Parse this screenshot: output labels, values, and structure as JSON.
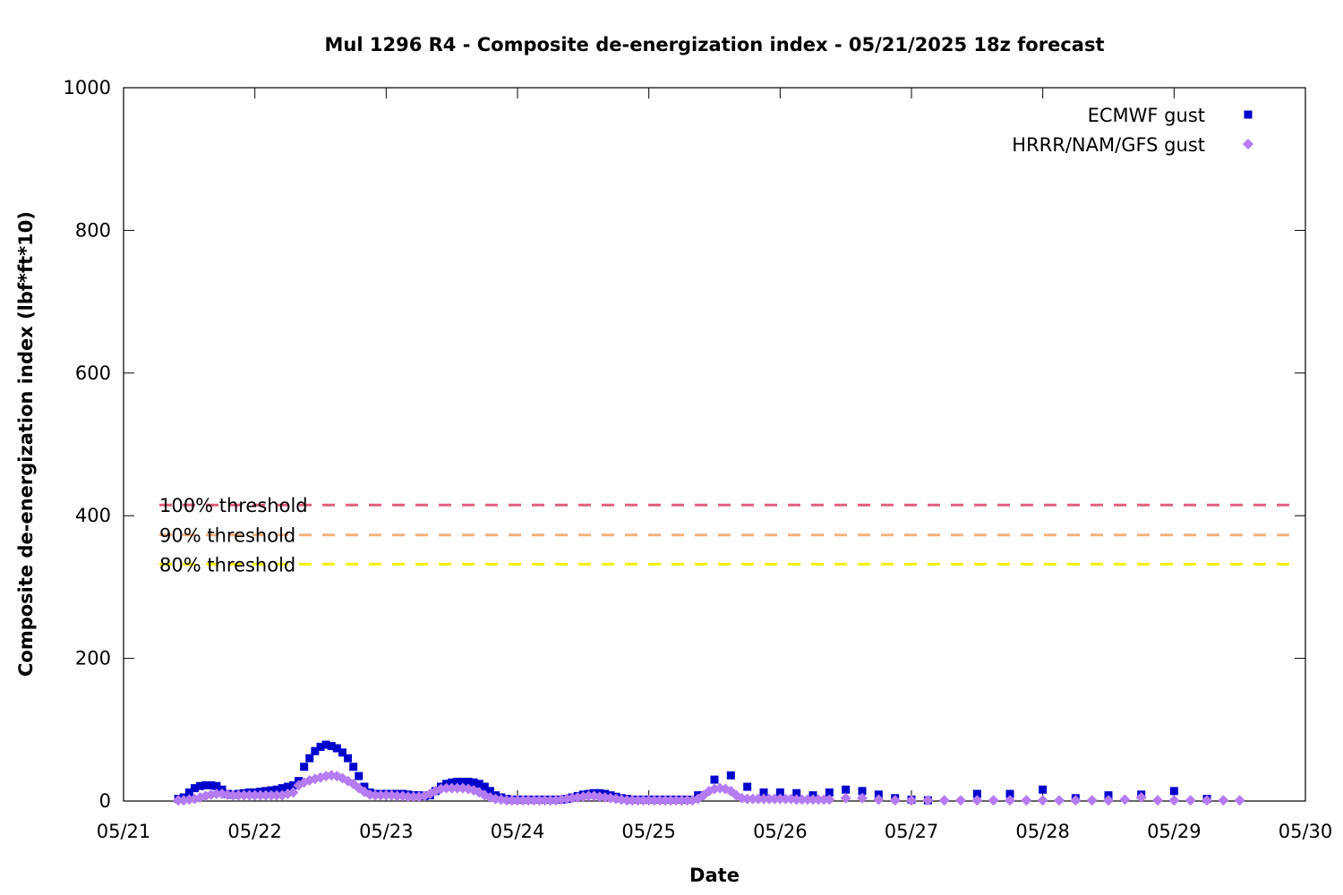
{
  "chart_data": {
    "type": "scatter",
    "title": "Mul 1296 R4 - Composite de-energization index - 05/21/2025 18z forecast",
    "xlabel": "Date",
    "ylabel": "Composite de-energization index (lbf*ft*10)",
    "xlim": [
      "05/21 00:00",
      "05/30 00:00"
    ],
    "ylim": [
      0,
      1000
    ],
    "yticks": [
      0,
      200,
      400,
      600,
      800,
      1000
    ],
    "xticks": [
      "05/21",
      "05/22",
      "05/23",
      "05/24",
      "05/25",
      "05/26",
      "05/27",
      "05/28",
      "05/29",
      "05/30"
    ],
    "grid": false,
    "legend_position": "top-right",
    "thresholds": [
      {
        "label": "100% threshold",
        "value": 415,
        "color": "#e0607e"
      },
      {
        "label": "90% threshold",
        "value": 373,
        "color": "#f4b07a"
      },
      {
        "label": "80% threshold",
        "value": 332,
        "color": "#f4f000"
      }
    ],
    "series": [
      {
        "name": "ECMWF gust",
        "marker": "square",
        "color": "#0000cc",
        "points": [
          [
            "05/21 10:00",
            3
          ],
          [
            "05/21 11:00",
            5
          ],
          [
            "05/21 12:00",
            12
          ],
          [
            "05/21 13:00",
            18
          ],
          [
            "05/21 14:00",
            21
          ],
          [
            "05/21 15:00",
            22
          ],
          [
            "05/21 16:00",
            22
          ],
          [
            "05/21 17:00",
            21
          ],
          [
            "05/21 18:00",
            16
          ],
          [
            "05/21 19:00",
            10
          ],
          [
            "05/21 20:00",
            9
          ],
          [
            "05/21 21:00",
            10
          ],
          [
            "05/21 22:00",
            11
          ],
          [
            "05/21 23:00",
            12
          ],
          [
            "05/22 00:00",
            12
          ],
          [
            "05/22 01:00",
            13
          ],
          [
            "05/22 02:00",
            14
          ],
          [
            "05/22 03:00",
            15
          ],
          [
            "05/22 04:00",
            16
          ],
          [
            "05/22 05:00",
            18
          ],
          [
            "05/22 06:00",
            20
          ],
          [
            "05/22 07:00",
            22
          ],
          [
            "05/22 08:00",
            28
          ],
          [
            "05/22 09:00",
            48
          ],
          [
            "05/22 10:00",
            60
          ],
          [
            "05/22 11:00",
            70
          ],
          [
            "05/22 12:00",
            76
          ],
          [
            "05/22 13:00",
            79
          ],
          [
            "05/22 14:00",
            77
          ],
          [
            "05/22 15:00",
            74
          ],
          [
            "05/22 16:00",
            68
          ],
          [
            "05/22 17:00",
            60
          ],
          [
            "05/22 18:00",
            48
          ],
          [
            "05/22 19:00",
            35
          ],
          [
            "05/22 20:00",
            20
          ],
          [
            "05/22 21:00",
            12
          ],
          [
            "05/22 22:00",
            10
          ],
          [
            "05/22 23:00",
            10
          ],
          [
            "05/23 00:00",
            10
          ],
          [
            "05/23 01:00",
            10
          ],
          [
            "05/23 02:00",
            10
          ],
          [
            "05/23 03:00",
            10
          ],
          [
            "05/23 04:00",
            9
          ],
          [
            "05/23 05:00",
            8
          ],
          [
            "05/23 06:00",
            8
          ],
          [
            "05/23 07:00",
            7
          ],
          [
            "05/23 08:00",
            8
          ],
          [
            "05/23 09:00",
            14
          ],
          [
            "05/23 10:00",
            20
          ],
          [
            "05/23 11:00",
            24
          ],
          [
            "05/23 12:00",
            26
          ],
          [
            "05/23 13:00",
            27
          ],
          [
            "05/23 14:00",
            27
          ],
          [
            "05/23 15:00",
            27
          ],
          [
            "05/23 16:00",
            26
          ],
          [
            "05/23 17:00",
            24
          ],
          [
            "05/23 18:00",
            20
          ],
          [
            "05/23 19:00",
            14
          ],
          [
            "05/23 20:00",
            8
          ],
          [
            "05/23 21:00",
            5
          ],
          [
            "05/23 22:00",
            3
          ],
          [
            "05/23 23:00",
            2
          ],
          [
            "05/24 00:00",
            2
          ],
          [
            "05/24 01:00",
            2
          ],
          [
            "05/24 02:00",
            2
          ],
          [
            "05/24 03:00",
            2
          ],
          [
            "05/24 04:00",
            2
          ],
          [
            "05/24 05:00",
            2
          ],
          [
            "05/24 06:00",
            2
          ],
          [
            "05/24 07:00",
            2
          ],
          [
            "05/24 08:00",
            2
          ],
          [
            "05/24 09:00",
            3
          ],
          [
            "05/24 10:00",
            5
          ],
          [
            "05/24 11:00",
            7
          ],
          [
            "05/24 12:00",
            9
          ],
          [
            "05/24 13:00",
            10
          ],
          [
            "05/24 14:00",
            11
          ],
          [
            "05/24 15:00",
            11
          ],
          [
            "05/24 16:00",
            10
          ],
          [
            "05/24 17:00",
            8
          ],
          [
            "05/24 18:00",
            6
          ],
          [
            "05/24 19:00",
            4
          ],
          [
            "05/24 20:00",
            3
          ],
          [
            "05/24 21:00",
            2
          ],
          [
            "05/24 22:00",
            2
          ],
          [
            "05/24 23:00",
            2
          ],
          [
            "05/25 00:00",
            2
          ],
          [
            "05/25 01:00",
            2
          ],
          [
            "05/25 02:00",
            2
          ],
          [
            "05/25 03:00",
            2
          ],
          [
            "05/25 04:00",
            2
          ],
          [
            "05/25 05:00",
            2
          ],
          [
            "05/25 06:00",
            2
          ],
          [
            "05/25 07:00",
            2
          ],
          [
            "05/25 09:00",
            8
          ],
          [
            "05/25 12:00",
            30
          ],
          [
            "05/25 15:00",
            36
          ],
          [
            "05/25 18:00",
            20
          ],
          [
            "05/25 21:00",
            12
          ],
          [
            "05/26 00:00",
            12
          ],
          [
            "05/26 03:00",
            11
          ],
          [
            "05/26 06:00",
            8
          ],
          [
            "05/26 09:00",
            12
          ],
          [
            "05/26 12:00",
            16
          ],
          [
            "05/26 15:00",
            14
          ],
          [
            "05/26 18:00",
            9
          ],
          [
            "05/26 21:00",
            4
          ],
          [
            "05/27 00:00",
            2
          ],
          [
            "05/27 03:00",
            1
          ],
          [
            "05/27 12:00",
            10
          ],
          [
            "05/27 18:00",
            10
          ],
          [
            "05/28 00:00",
            16
          ],
          [
            "05/28 06:00",
            4
          ],
          [
            "05/28 12:00",
            8
          ],
          [
            "05/28 18:00",
            9
          ],
          [
            "05/29 00:00",
            14
          ],
          [
            "05/29 06:00",
            3
          ]
        ]
      },
      {
        "name": "HRRR/NAM/GFS gust",
        "marker": "diamond",
        "color": "#b57bf2",
        "points": [
          [
            "05/21 10:00",
            1
          ],
          [
            "05/21 11:00",
            1
          ],
          [
            "05/21 12:00",
            2
          ],
          [
            "05/21 13:00",
            3
          ],
          [
            "05/21 14:00",
            5
          ],
          [
            "05/21 15:00",
            7
          ],
          [
            "05/21 16:00",
            9
          ],
          [
            "05/21 17:00",
            10
          ],
          [
            "05/21 18:00",
            10
          ],
          [
            "05/21 19:00",
            9
          ],
          [
            "05/21 20:00",
            8
          ],
          [
            "05/21 21:00",
            8
          ],
          [
            "05/21 22:00",
            8
          ],
          [
            "05/21 23:00",
            8
          ],
          [
            "05/22 00:00",
            8
          ],
          [
            "05/22 01:00",
            8
          ],
          [
            "05/22 02:00",
            8
          ],
          [
            "05/22 03:00",
            8
          ],
          [
            "05/22 04:00",
            8
          ],
          [
            "05/22 05:00",
            8
          ],
          [
            "05/22 06:00",
            10
          ],
          [
            "05/22 07:00",
            12
          ],
          [
            "05/22 08:00",
            22
          ],
          [
            "05/22 09:00",
            26
          ],
          [
            "05/22 10:00",
            29
          ],
          [
            "05/22 11:00",
            31
          ],
          [
            "05/22 12:00",
            33
          ],
          [
            "05/22 13:00",
            35
          ],
          [
            "05/22 14:00",
            36
          ],
          [
            "05/22 15:00",
            35
          ],
          [
            "05/22 16:00",
            32
          ],
          [
            "05/22 17:00",
            28
          ],
          [
            "05/22 18:00",
            24
          ],
          [
            "05/22 19:00",
            18
          ],
          [
            "05/22 20:00",
            13
          ],
          [
            "05/22 21:00",
            9
          ],
          [
            "05/22 22:00",
            8
          ],
          [
            "05/22 23:00",
            8
          ],
          [
            "05/23 00:00",
            8
          ],
          [
            "05/23 01:00",
            8
          ],
          [
            "05/23 02:00",
            7
          ],
          [
            "05/23 03:00",
            7
          ],
          [
            "05/23 04:00",
            6
          ],
          [
            "05/23 05:00",
            6
          ],
          [
            "05/23 06:00",
            6
          ],
          [
            "05/23 07:00",
            7
          ],
          [
            "05/23 08:00",
            10
          ],
          [
            "05/23 09:00",
            14
          ],
          [
            "05/23 10:00",
            17
          ],
          [
            "05/23 11:00",
            18
          ],
          [
            "05/23 12:00",
            18
          ],
          [
            "05/23 13:00",
            18
          ],
          [
            "05/23 14:00",
            18
          ],
          [
            "05/23 15:00",
            17
          ],
          [
            "05/23 16:00",
            15
          ],
          [
            "05/23 17:00",
            12
          ],
          [
            "05/23 18:00",
            8
          ],
          [
            "05/23 19:00",
            5
          ],
          [
            "05/23 20:00",
            3
          ],
          [
            "05/23 21:00",
            2
          ],
          [
            "05/23 22:00",
            1
          ],
          [
            "05/23 23:00",
            1
          ],
          [
            "05/24 00:00",
            1
          ],
          [
            "05/24 01:00",
            1
          ],
          [
            "05/24 02:00",
            1
          ],
          [
            "05/24 03:00",
            1
          ],
          [
            "05/24 04:00",
            1
          ],
          [
            "05/24 05:00",
            1
          ],
          [
            "05/24 06:00",
            1
          ],
          [
            "05/24 07:00",
            1
          ],
          [
            "05/24 08:00",
            2
          ],
          [
            "05/24 09:00",
            3
          ],
          [
            "05/24 10:00",
            4
          ],
          [
            "05/24 11:00",
            5
          ],
          [
            "05/24 12:00",
            6
          ],
          [
            "05/24 13:00",
            7
          ],
          [
            "05/24 14:00",
            7
          ],
          [
            "05/24 15:00",
            6
          ],
          [
            "05/24 16:00",
            5
          ],
          [
            "05/24 17:00",
            4
          ],
          [
            "05/24 18:00",
            3
          ],
          [
            "05/24 19:00",
            2
          ],
          [
            "05/24 20:00",
            1
          ],
          [
            "05/24 21:00",
            1
          ],
          [
            "05/24 22:00",
            1
          ],
          [
            "05/24 23:00",
            1
          ],
          [
            "05/25 00:00",
            1
          ],
          [
            "05/25 01:00",
            1
          ],
          [
            "05/25 02:00",
            1
          ],
          [
            "05/25 03:00",
            1
          ],
          [
            "05/25 04:00",
            1
          ],
          [
            "05/25 05:00",
            1
          ],
          [
            "05/25 06:00",
            1
          ],
          [
            "05/25 07:00",
            1
          ],
          [
            "05/25 08:00",
            1
          ],
          [
            "05/25 09:00",
            3
          ],
          [
            "05/25 10:00",
            8
          ],
          [
            "05/25 11:00",
            14
          ],
          [
            "05/25 12:00",
            17
          ],
          [
            "05/25 13:00",
            18
          ],
          [
            "05/25 14:00",
            17
          ],
          [
            "05/25 15:00",
            14
          ],
          [
            "05/25 16:00",
            8
          ],
          [
            "05/25 17:00",
            4
          ],
          [
            "05/25 18:00",
            3
          ],
          [
            "05/25 19:00",
            3
          ],
          [
            "05/25 20:00",
            3
          ],
          [
            "05/25 21:00",
            3
          ],
          [
            "05/25 22:00",
            3
          ],
          [
            "05/25 23:00",
            3
          ],
          [
            "05/26 00:00",
            3
          ],
          [
            "05/26 01:00",
            3
          ],
          [
            "05/26 02:00",
            3
          ],
          [
            "05/26 03:00",
            2
          ],
          [
            "05/26 04:00",
            2
          ],
          [
            "05/26 05:00",
            2
          ],
          [
            "05/26 06:00",
            2
          ],
          [
            "05/26 07:00",
            2
          ],
          [
            "05/26 08:00",
            2
          ],
          [
            "05/26 09:00",
            2
          ],
          [
            "05/26 12:00",
            4
          ],
          [
            "05/26 15:00",
            4
          ],
          [
            "05/26 18:00",
            2
          ],
          [
            "05/26 21:00",
            1
          ],
          [
            "05/27 00:00",
            1
          ],
          [
            "05/27 03:00",
            1
          ],
          [
            "05/27 06:00",
            1
          ],
          [
            "05/27 09:00",
            1
          ],
          [
            "05/27 12:00",
            1
          ],
          [
            "05/27 15:00",
            1
          ],
          [
            "05/27 18:00",
            1
          ],
          [
            "05/27 21:00",
            1
          ],
          [
            "05/28 00:00",
            1
          ],
          [
            "05/28 03:00",
            1
          ],
          [
            "05/28 06:00",
            1
          ],
          [
            "05/28 09:00",
            1
          ],
          [
            "05/28 12:00",
            1
          ],
          [
            "05/28 15:00",
            2
          ],
          [
            "05/28 18:00",
            5
          ],
          [
            "05/28 21:00",
            1
          ],
          [
            "05/29 00:00",
            1
          ],
          [
            "05/29 03:00",
            1
          ],
          [
            "05/29 06:00",
            1
          ],
          [
            "05/29 09:00",
            1
          ],
          [
            "05/29 12:00",
            1
          ]
        ]
      }
    ]
  }
}
